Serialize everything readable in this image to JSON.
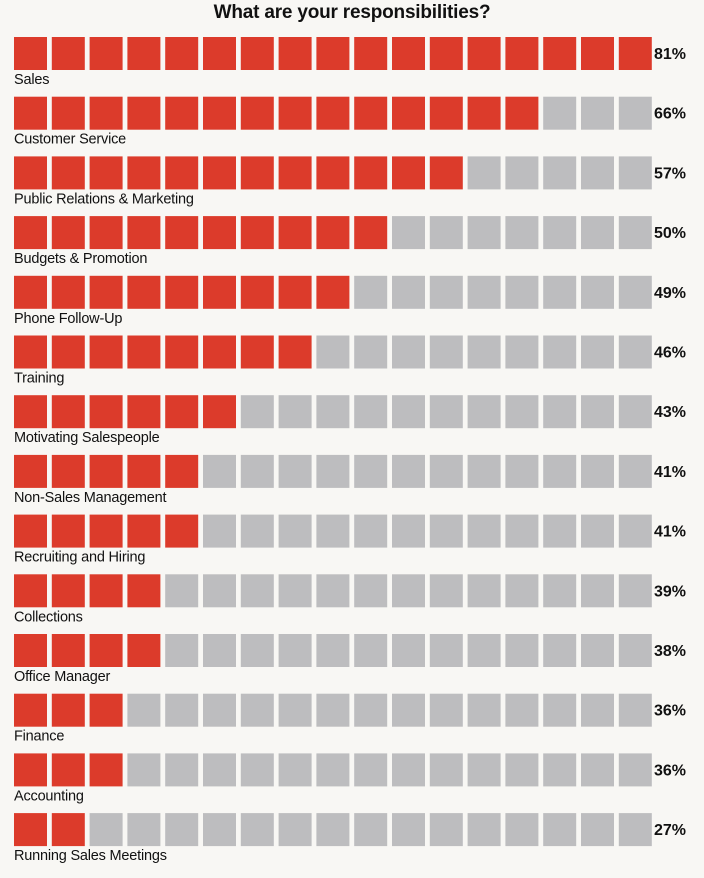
{
  "chart_data": {
    "type": "bar",
    "title": "What are your responsibilities?",
    "units_total": 17,
    "colors": {
      "filled": "#dc3b2b",
      "empty": "#bdbdbf"
    },
    "rows": [
      {
        "category": "Sales",
        "value": 81,
        "value_label": "81%",
        "filled_units": 17
      },
      {
        "category": "Customer Service",
        "value": 66,
        "value_label": "66%",
        "filled_units": 14
      },
      {
        "category": "Public Relations & Marketing",
        "value": 57,
        "value_label": "57%",
        "filled_units": 12
      },
      {
        "category": "Budgets & Promotion",
        "value": 50,
        "value_label": "50%",
        "filled_units": 10
      },
      {
        "category": "Phone Follow-Up",
        "value": 49,
        "value_label": "49%",
        "filled_units": 9
      },
      {
        "category": "Training",
        "value": 46,
        "value_label": "46%",
        "filled_units": 8
      },
      {
        "category": "Motivating Salespeople",
        "value": 43,
        "value_label": "43%",
        "filled_units": 6
      },
      {
        "category": "Non-Sales Management",
        "value": 41,
        "value_label": "41%",
        "filled_units": 5
      },
      {
        "category": "Recruiting and Hiring",
        "value": 41,
        "value_label": "41%",
        "filled_units": 5
      },
      {
        "category": "Collections",
        "value": 39,
        "value_label": "39%",
        "filled_units": 4
      },
      {
        "category": "Office Manager",
        "value": 38,
        "value_label": "38%",
        "filled_units": 4
      },
      {
        "category": "Finance",
        "value": 36,
        "value_label": "36%",
        "filled_units": 3
      },
      {
        "category": "Accounting",
        "value": 36,
        "value_label": "36%",
        "filled_units": 3
      },
      {
        "category": "Running Sales Meetings",
        "value": 27,
        "value_label": "27%",
        "filled_units": 2
      }
    ]
  }
}
